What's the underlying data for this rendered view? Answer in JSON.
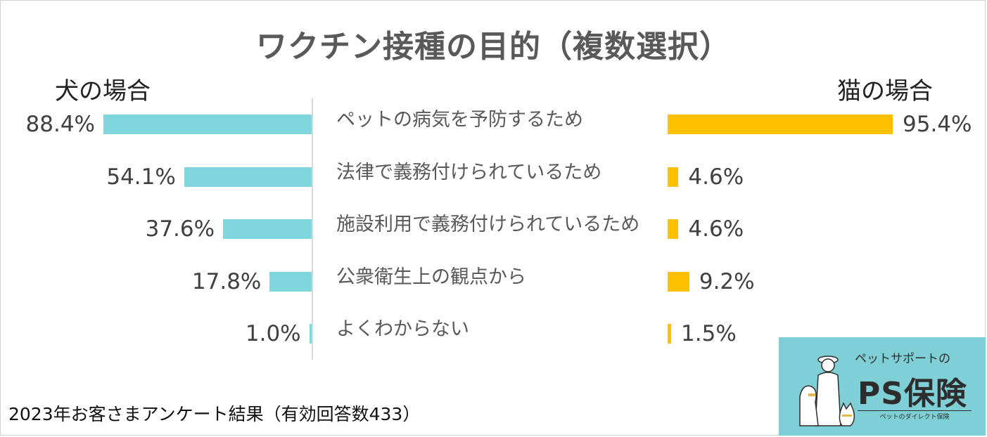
{
  "title": "ワクチン接種の目的（複数選択）",
  "footer": "2023年お客さまアンケート結果（有効回答数433）",
  "logo": {
    "subtitle": "ペットサポートの",
    "name": "PS保険",
    "tagline": "ペットのダイレクト保険"
  },
  "colors": {
    "dog": "#7fd6dc",
    "cat": "#ffc000"
  },
  "chart_data": {
    "type": "bar",
    "orientation": "horizontal-butterfly",
    "categories": [
      "ペットの病気を予防するため",
      "法律で義務付けられているため",
      "施設利用で義務付けられているため",
      "公衆衛生上の観点から",
      "よくわからない"
    ],
    "series": [
      {
        "name": "犬の場合",
        "values": [
          88.4,
          54.1,
          37.6,
          17.8,
          1.0
        ],
        "labels": [
          "88.4%",
          "54.1%",
          "37.6%",
          "17.8%",
          "1.0%"
        ]
      },
      {
        "name": "猫の場合",
        "values": [
          95.4,
          4.6,
          4.6,
          9.2,
          1.5
        ],
        "labels": [
          "95.4%",
          "4.6%",
          "4.6%",
          "9.2%",
          "1.5%"
        ]
      }
    ],
    "unit": "%"
  }
}
